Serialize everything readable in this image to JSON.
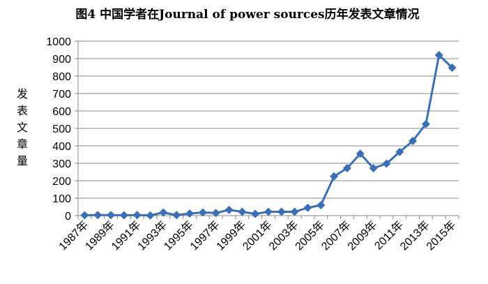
{
  "chart_data": {
    "type": "line",
    "title": "图4 中国学者在Journal of power sources历年发表文章情况",
    "ylabel": "发表文章量",
    "xlabel": "",
    "ylim": [
      0,
      1000
    ],
    "yticks": [
      0,
      100,
      200,
      300,
      400,
      500,
      600,
      700,
      800,
      900,
      1000
    ],
    "grid": "horizontal",
    "legend": "none",
    "x": [
      "1987年",
      "1988年",
      "1989年",
      "1990年",
      "1991年",
      "1992年",
      "1993年",
      "1994年",
      "1995年",
      "1996年",
      "1997年",
      "1998年",
      "1999年",
      "2000年",
      "2001年",
      "2002年",
      "2003年",
      "2004年",
      "2005年",
      "2006年",
      "2007年",
      "2008年",
      "2009年",
      "2010年",
      "2011年",
      "2012年",
      "2013年",
      "2014年",
      "2015年"
    ],
    "x_tick_labels": [
      "1987年",
      "1989年",
      "1991年",
      "1993年",
      "1995年",
      "1997年",
      "1999年",
      "2001年",
      "2003年",
      "2005年",
      "2007年",
      "2009年",
      "2011年",
      "2013年",
      "2015年"
    ],
    "series": [
      {
        "color": "#3a6fb5",
        "values": [
          2,
          3,
          3,
          2,
          3,
          1,
          18,
          3,
          12,
          18,
          15,
          33,
          22,
          10,
          22,
          22,
          22,
          45,
          60,
          225,
          272,
          355,
          272,
          298,
          365,
          428,
          525,
          920,
          848
        ]
      }
    ]
  }
}
